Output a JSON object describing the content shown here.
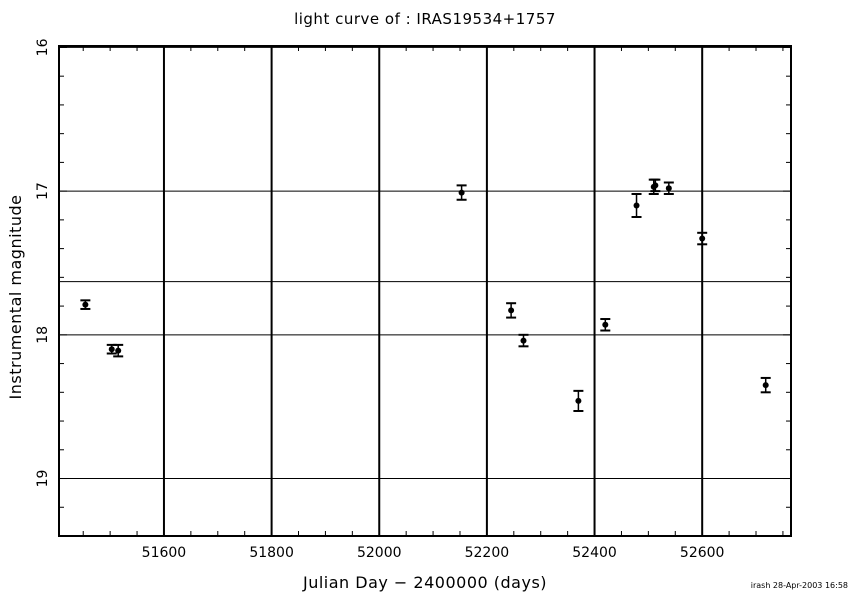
{
  "chart_data": {
    "type": "scatter",
    "title": "light curve of : IRAS19534+1757",
    "xlabel": "Julian Day − 2400000 (days)",
    "ylabel": "Instrumental magnitude",
    "xlim": [
      51405,
      52765
    ],
    "ylim": [
      19.4,
      15.99
    ],
    "y_inverted": true,
    "x_ticks": [
      51600,
      51800,
      52000,
      52200,
      52400,
      52600
    ],
    "y_ticks": [
      16,
      17,
      18,
      19
    ],
    "x_tick_labels": [
      "51600",
      "51800",
      "52000",
      "52200",
      "52400",
      "52600"
    ],
    "y_tick_labels": [
      "16",
      "17",
      "18",
      "19"
    ],
    "vertical_lines": [
      51600,
      51800,
      52000,
      52200,
      52400,
      52600
    ],
    "horizontal_lines": [
      16,
      17,
      17.63,
      18,
      19
    ],
    "points": [
      {
        "x": 51454,
        "y": 17.79,
        "err": 0.03
      },
      {
        "x": 51503,
        "y": 18.1,
        "err": 0.03
      },
      {
        "x": 51515,
        "y": 18.11,
        "err": 0.04
      },
      {
        "x": 52153,
        "y": 17.01,
        "err": 0.05
      },
      {
        "x": 52245,
        "y": 17.83,
        "err": 0.05
      },
      {
        "x": 52268,
        "y": 18.04,
        "err": 0.04
      },
      {
        "x": 52370,
        "y": 18.46,
        "err": 0.07
      },
      {
        "x": 52420,
        "y": 17.93,
        "err": 0.04
      },
      {
        "x": 52478,
        "y": 17.1,
        "err": 0.08
      },
      {
        "x": 52510,
        "y": 16.97,
        "err": 0.05
      },
      {
        "x": 52513,
        "y": 16.96,
        "err": 0.04
      },
      {
        "x": 52538,
        "y": 16.98,
        "err": 0.04
      },
      {
        "x": 52600,
        "y": 17.33,
        "err": 0.04
      },
      {
        "x": 52718,
        "y": 18.35,
        "err": 0.05
      }
    ],
    "grid": true
  },
  "footer": {
    "stamp": "irash 28-Apr-2003 16:58"
  }
}
